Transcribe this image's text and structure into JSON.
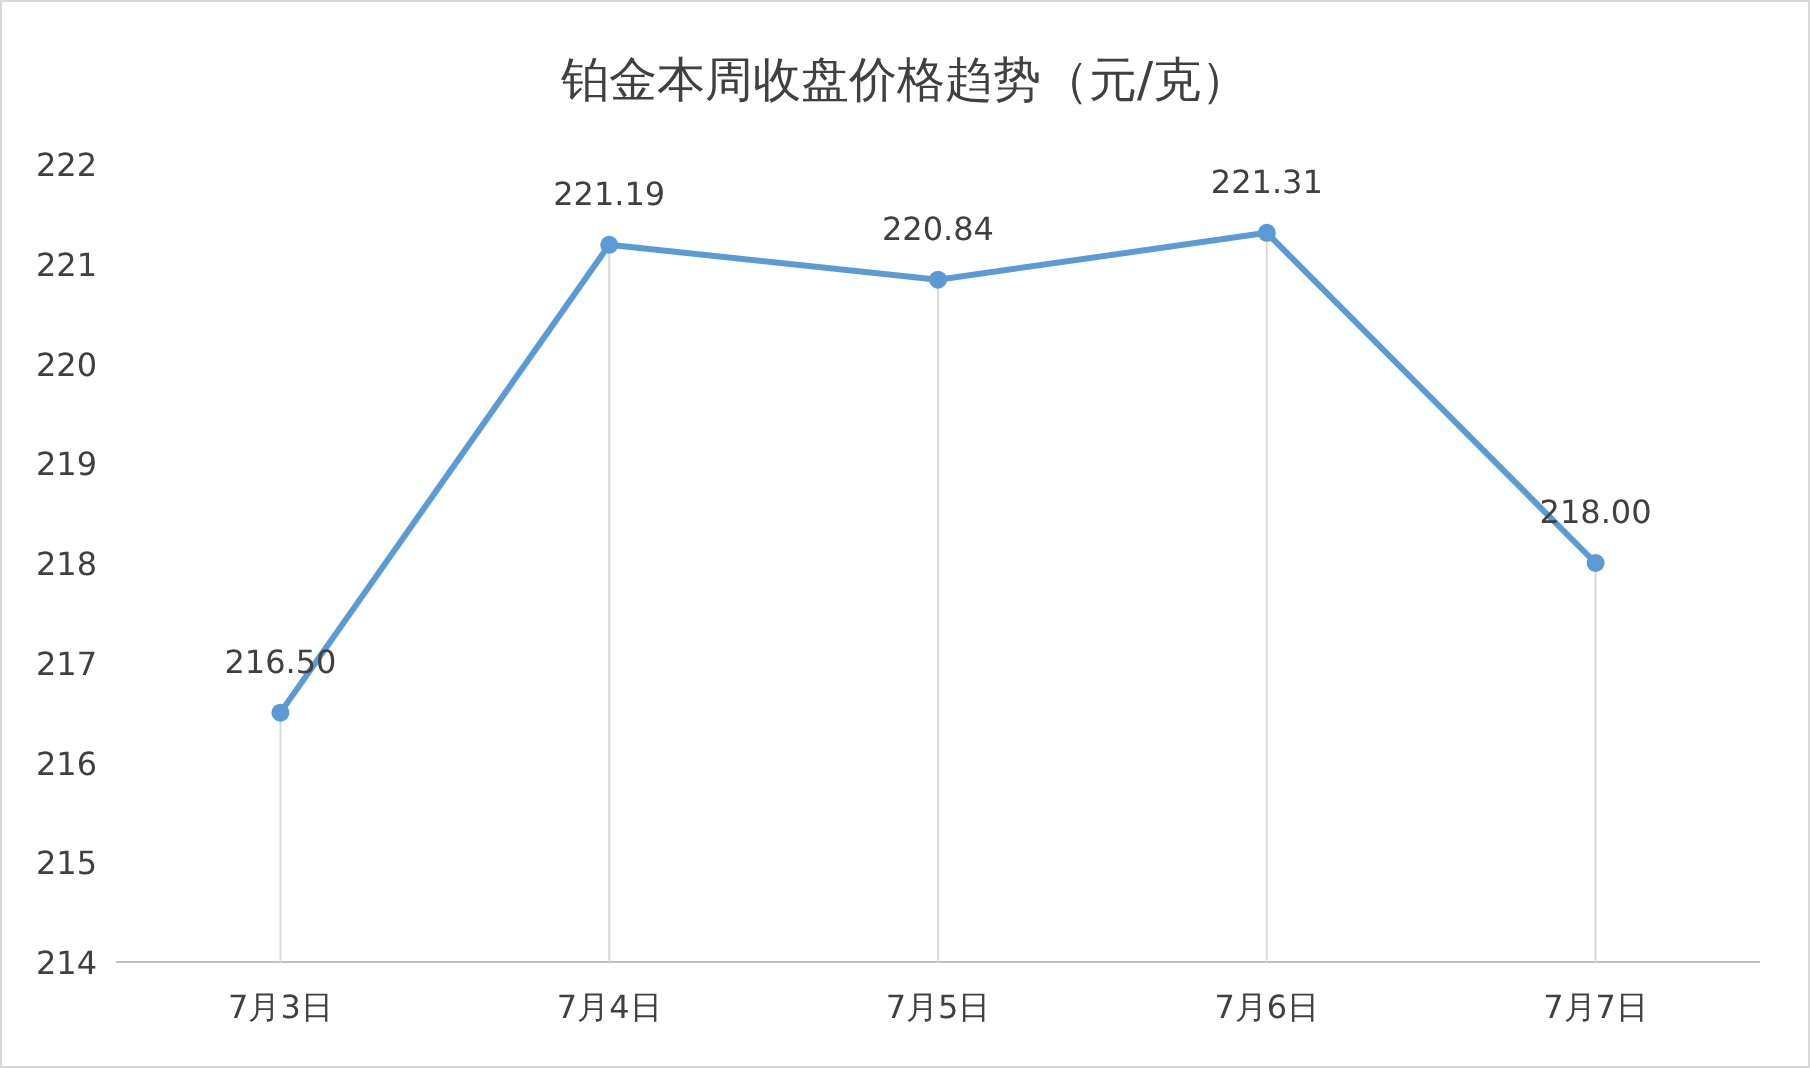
{
  "chart_data": {
    "type": "line",
    "title": "铂金本周收盘价格趋势（元/克）",
    "categories": [
      "7月3日",
      "7月4日",
      "7月5日",
      "7月6日",
      "7月7日"
    ],
    "values": [
      216.5,
      221.19,
      220.84,
      221.31,
      218.0
    ],
    "value_labels": [
      "216.50",
      "221.19",
      "220.84",
      "221.31",
      "218.00"
    ],
    "color": "#5b9bd5",
    "ylim": [
      214,
      222
    ],
    "yticks": [
      214,
      215,
      216,
      217,
      218,
      219,
      220,
      221,
      222
    ],
    "marker": "circle",
    "grid": "x"
  }
}
